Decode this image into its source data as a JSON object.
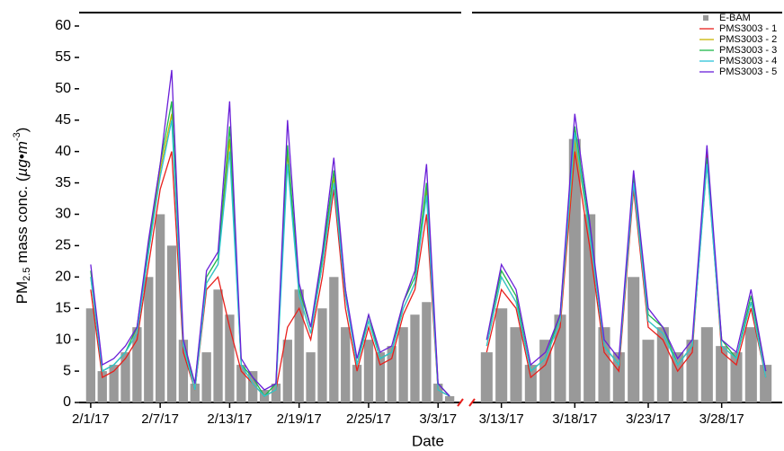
{
  "chart_data": [
    {
      "type": "line",
      "x_label": "Date",
      "y_label": [
        "PM",
        "2.5",
        " mass conc. (",
        "µg•m",
        "-3",
        ")"
      ],
      "x": [
        "2/1/17",
        "2/2/17",
        "2/3/17",
        "2/4/17",
        "2/5/17",
        "2/6/17",
        "2/7/17",
        "2/8/17",
        "2/9/17",
        "2/10/17",
        "2/11/17",
        "2/12/17",
        "2/13/17",
        "2/14/17",
        "2/15/17",
        "2/16/17",
        "2/17/17",
        "2/18/17",
        "2/19/17",
        "2/20/17",
        "2/21/17",
        "2/22/17",
        "2/23/17",
        "2/24/17",
        "2/25/17",
        "2/26/17",
        "2/27/17",
        "2/28/17",
        "3/1/17",
        "3/2/17",
        "3/3/17",
        "3/4/17"
      ],
      "xlim": [
        "1/31/17",
        "3/5/17"
      ],
      "xticks": [
        "2/1/17",
        "2/7/17",
        "2/13/17",
        "2/19/17",
        "2/25/17",
        "3/3/17"
      ],
      "ylim": [
        0,
        62
      ],
      "yticks": [
        0,
        5,
        10,
        15,
        20,
        25,
        30,
        35,
        40,
        45,
        50,
        55,
        60
      ],
      "series": [
        {
          "kind": "bar",
          "color": "#999999",
          "values": [
            15,
            5,
            6,
            8,
            12,
            20,
            30,
            25,
            10,
            3,
            8,
            18,
            14,
            6,
            5,
            2,
            3,
            10,
            18,
            8,
            15,
            20,
            12,
            6,
            10,
            8,
            9,
            12,
            14,
            16,
            3,
            1
          ]
        },
        {
          "kind": "line",
          "color": "#e8201c",
          "values": [
            18,
            4,
            5,
            7,
            10,
            22,
            34,
            40,
            8,
            2,
            18,
            20,
            12,
            5,
            3,
            1,
            2,
            12,
            15,
            10,
            20,
            34,
            15,
            5,
            12,
            6,
            7,
            14,
            18,
            30,
            2,
            1
          ]
        },
        {
          "kind": "line",
          "color": "#c8b400",
          "values": [
            20,
            5,
            6,
            8,
            11,
            24,
            37,
            46,
            9,
            2,
            19,
            22,
            42,
            6,
            3,
            1,
            2,
            40,
            17,
            11,
            22,
            36,
            17,
            6,
            13,
            7,
            8,
            15,
            19,
            34,
            2,
            1
          ]
        },
        {
          "kind": "line",
          "color": "#1fb84a",
          "values": [
            21,
            5,
            6,
            8,
            12,
            25,
            38,
            48,
            9,
            3,
            20,
            23,
            44,
            6,
            4,
            1,
            3,
            41,
            18,
            12,
            23,
            37,
            18,
            6,
            14,
            7,
            8,
            16,
            20,
            35,
            3,
            1
          ]
        },
        {
          "kind": "line",
          "color": "#2cc4d8",
          "values": [
            20,
            5,
            6,
            8,
            11,
            24,
            36,
            45,
            9,
            2,
            19,
            22,
            40,
            6,
            3,
            1,
            2,
            38,
            17,
            11,
            22,
            35,
            17,
            6,
            13,
            7,
            8,
            15,
            19,
            33,
            2,
            1
          ]
        },
        {
          "kind": "line",
          "color": "#6a1fd8",
          "values": [
            22,
            6,
            7,
            9,
            12,
            26,
            38,
            53,
            10,
            3,
            21,
            24,
            48,
            7,
            4,
            2,
            3,
            45,
            19,
            12,
            24,
            39,
            18,
            7,
            14,
            8,
            9,
            16,
            21,
            38,
            3,
            1
          ]
        }
      ]
    },
    {
      "type": "line",
      "x": [
        "3/12/17",
        "3/13/17",
        "3/14/17",
        "3/15/17",
        "3/16/17",
        "3/17/17",
        "3/18/17",
        "3/19/17",
        "3/20/17",
        "3/21/17",
        "3/22/17",
        "3/23/17",
        "3/24/17",
        "3/25/17",
        "3/26/17",
        "3/27/17",
        "3/28/17",
        "3/29/17",
        "3/30/17",
        "3/31/17"
      ],
      "xlim": [
        "3/11/17",
        "4/1/17"
      ],
      "xticks": [
        "3/13/17",
        "3/18/17",
        "3/23/17",
        "3/28/17"
      ],
      "ylim": [
        0,
        62
      ],
      "legend": "upper right",
      "series": [
        {
          "name": "E-BAM",
          "kind": "bar",
          "color": "#999999",
          "values": [
            8,
            15,
            12,
            6,
            10,
            14,
            42,
            30,
            12,
            8,
            20,
            10,
            12,
            8,
            10,
            12,
            9,
            8,
            12,
            6
          ]
        },
        {
          "name": "PMS3003 - 1",
          "kind": "line",
          "color": "#e8201c",
          "values": [
            8,
            18,
            15,
            4,
            6,
            12,
            40,
            25,
            8,
            5,
            34,
            12,
            10,
            5,
            8,
            40,
            8,
            6,
            15,
            4
          ]
        },
        {
          "name": "PMS3003 - 2",
          "kind": "line",
          "color": "#c8b400",
          "values": [
            9,
            20,
            16,
            5,
            7,
            13,
            42,
            27,
            9,
            6,
            35,
            13,
            11,
            6,
            9,
            38,
            9,
            7,
            16,
            4
          ]
        },
        {
          "name": "PMS3003 - 3",
          "kind": "line",
          "color": "#1fb84a",
          "values": [
            10,
            21,
            17,
            5,
            7,
            14,
            44,
            28,
            9,
            6,
            36,
            14,
            12,
            6,
            9,
            39,
            10,
            7,
            17,
            5
          ]
        },
        {
          "name": "PMS3003 - 4",
          "kind": "line",
          "color": "#2cc4d8",
          "values": [
            9,
            20,
            16,
            5,
            7,
            13,
            43,
            27,
            9,
            6,
            35,
            13,
            11,
            6,
            9,
            38,
            9,
            7,
            16,
            4
          ]
        },
        {
          "name": "PMS3003 - 5",
          "kind": "line",
          "color": "#6a1fd8",
          "values": [
            10,
            22,
            18,
            6,
            8,
            14,
            46,
            29,
            10,
            7,
            37,
            15,
            12,
            7,
            10,
            41,
            10,
            8,
            18,
            5
          ]
        }
      ]
    }
  ]
}
